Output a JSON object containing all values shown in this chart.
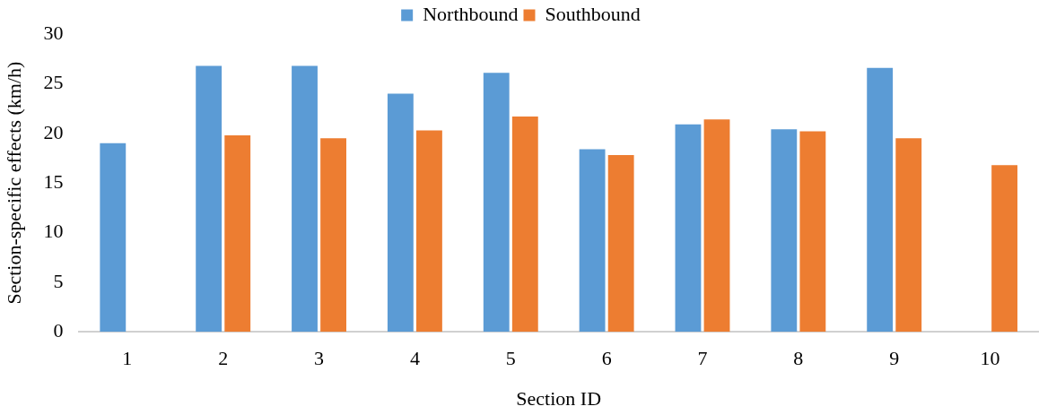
{
  "chart_data": {
    "type": "bar",
    "xlabel": "Section ID",
    "ylabel": "Section-specific effects (km/h)",
    "categories": [
      "1",
      "2",
      "3",
      "4",
      "5",
      "6",
      "7",
      "8",
      "9",
      "10"
    ],
    "series": [
      {
        "name": "Northbound",
        "color": "#5b9bd5",
        "values": [
          19.0,
          26.8,
          26.8,
          24.0,
          26.1,
          18.4,
          20.9,
          20.4,
          26.6,
          null
        ]
      },
      {
        "name": "Southbound",
        "color": "#ed7d31",
        "values": [
          null,
          19.8,
          19.5,
          20.3,
          21.7,
          17.8,
          21.4,
          20.2,
          19.5,
          16.8
        ]
      }
    ],
    "ylim": [
      0,
      30
    ],
    "yticks": [
      0,
      5,
      10,
      15,
      20,
      25,
      30
    ],
    "grid": false,
    "legend": "top"
  }
}
